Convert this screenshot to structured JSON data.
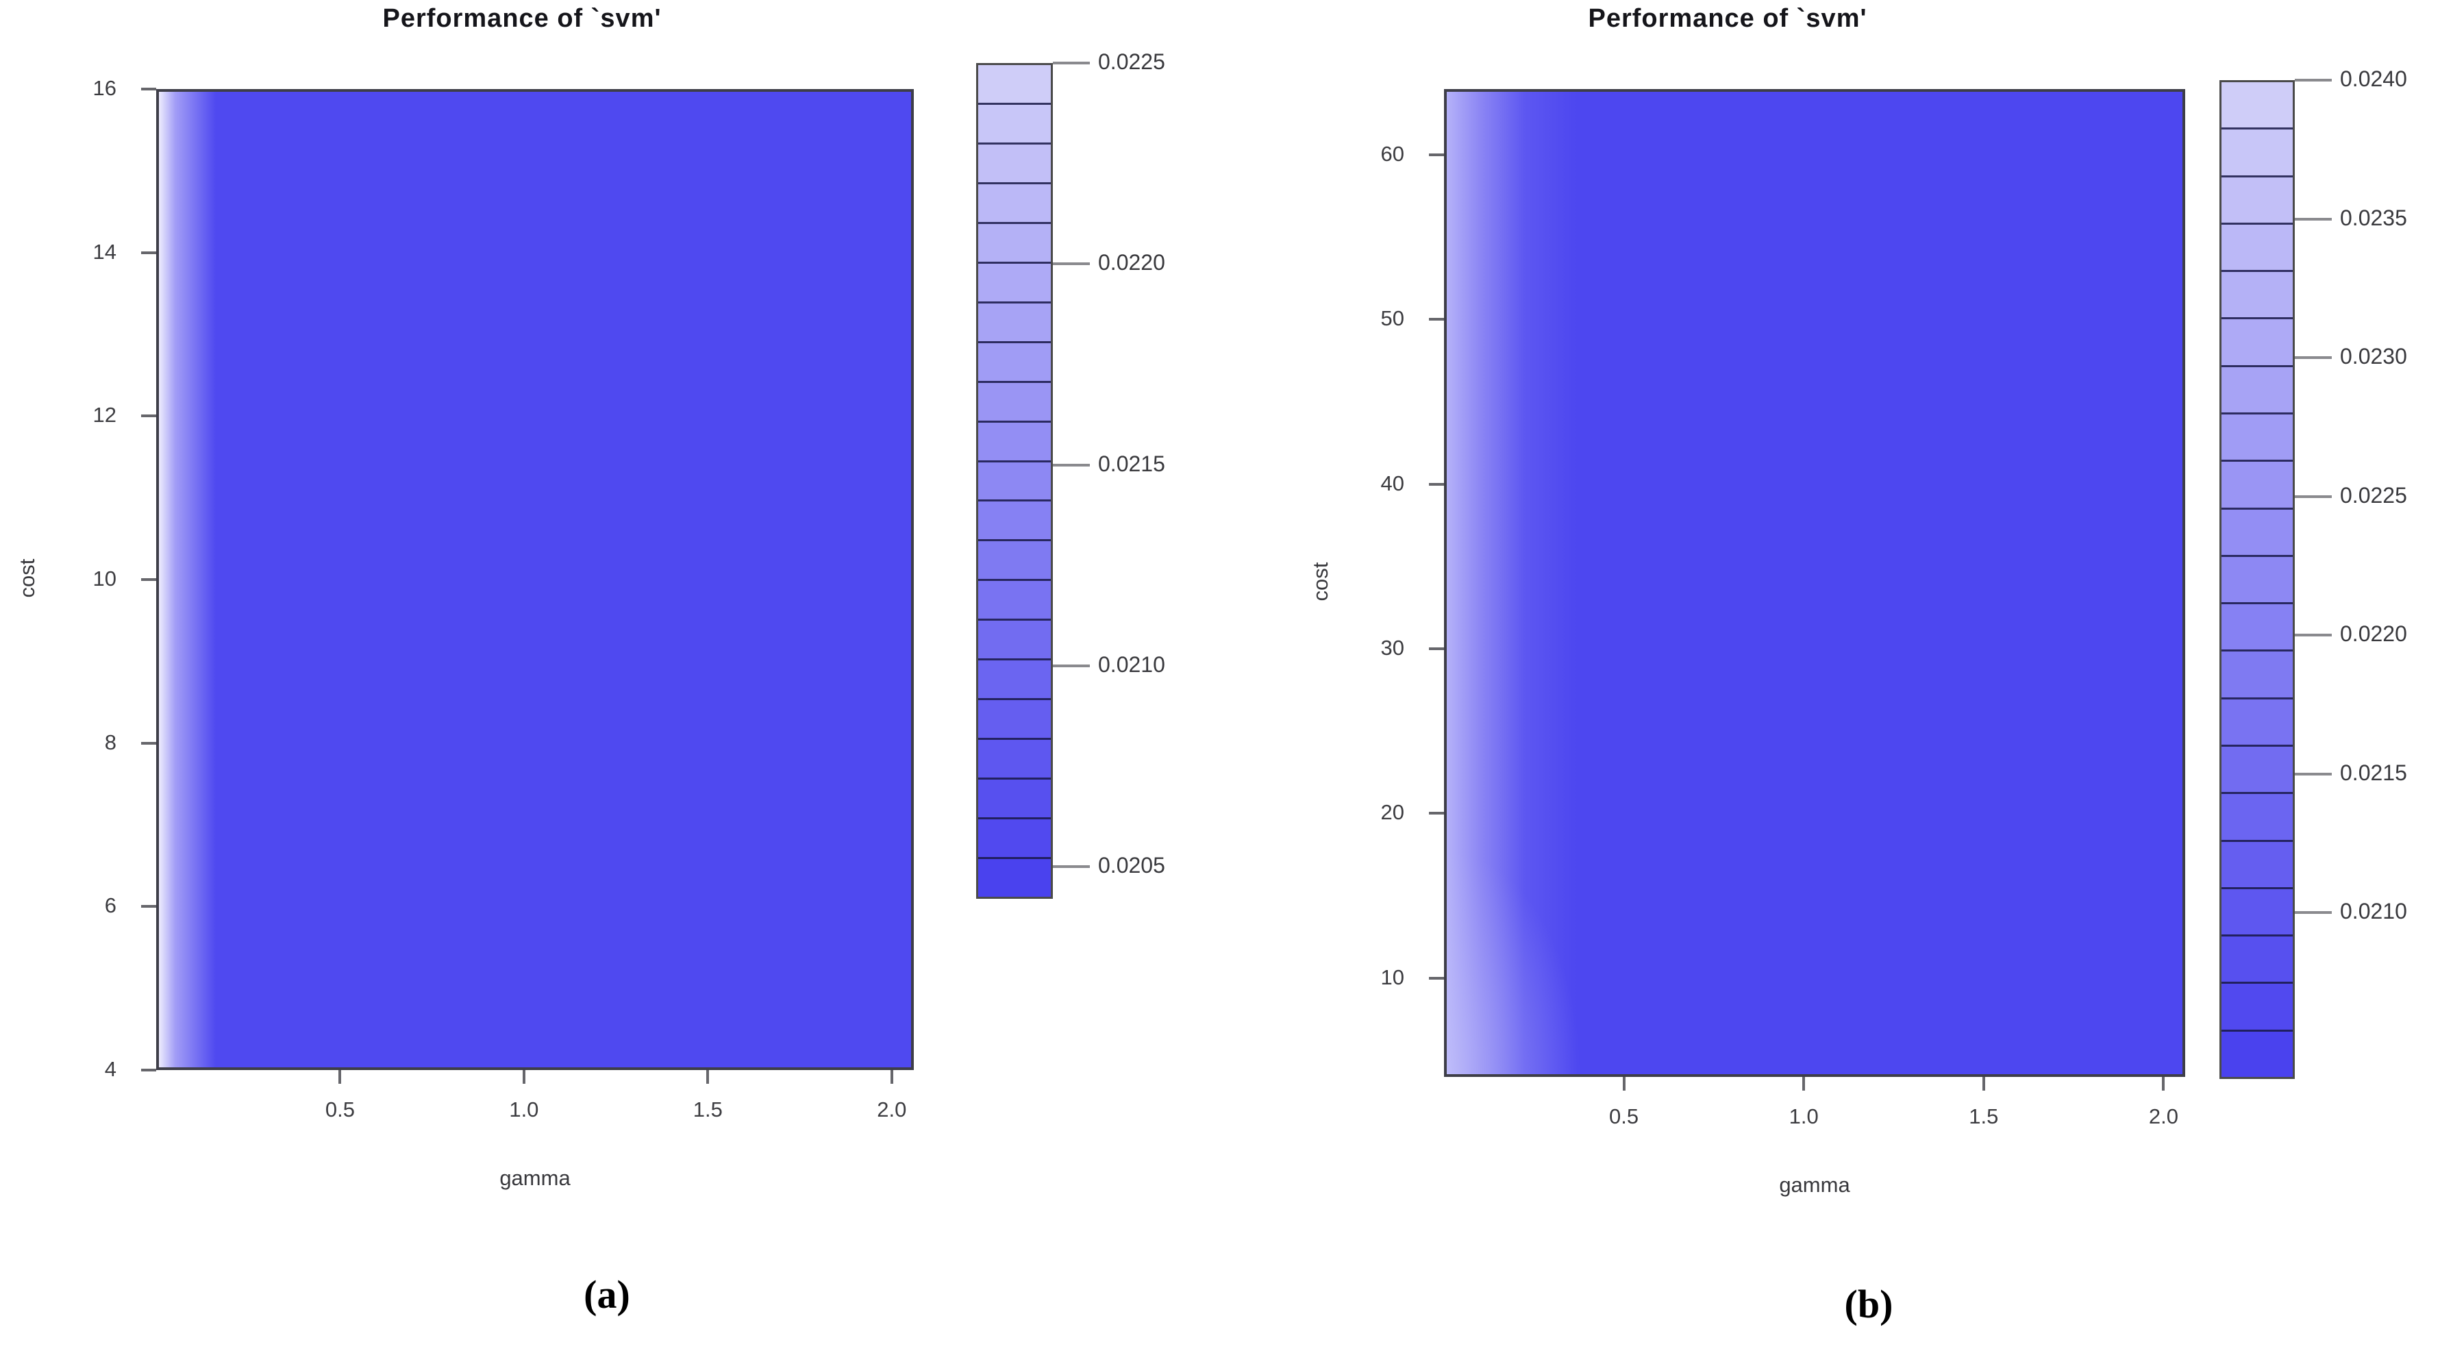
{
  "panels": [
    {
      "id": "a",
      "title": "Performance of `svm'",
      "xlabel": "gamma",
      "ylabel": "cost",
      "caption": "(a)",
      "x_range": [
        0,
        2.06
      ],
      "x_tick_values": [
        0.5,
        1.0,
        1.5,
        2.0
      ],
      "x_tick_labels": [
        "0.5",
        "1.0",
        "1.5",
        "2.0"
      ],
      "y_range": [
        4,
        16
      ],
      "y_tick_values": [
        4,
        6,
        8,
        10,
        12,
        14,
        16
      ],
      "y_tick_labels": [
        "4",
        "6",
        "8",
        "10",
        "12",
        "14",
        "16"
      ],
      "colorbar": {
        "segments": 21,
        "scale_top": 0.0225,
        "scale_bottom": 0.02042,
        "tick_values": [
          0.0225,
          0.022,
          0.0215,
          0.021,
          0.0205
        ],
        "tick_labels": [
          "0.0225",
          "0.0220",
          "0.0215",
          "0.0210",
          "0.0205"
        ],
        "color_top": "#cfcdf8",
        "color_bottom": "#4a42ee"
      },
      "surface": {
        "base": "#4f49f0",
        "edge_stops": [
          [
            "#edecfd",
            0
          ],
          [
            "#a29df6",
            0.022
          ],
          [
            "#4f49f0",
            0.075
          ]
        ]
      }
    },
    {
      "id": "b",
      "title": "Performance of `svm'",
      "xlabel": "gamma",
      "ylabel": "cost",
      "caption": "(b)",
      "x_range": [
        0,
        2.06
      ],
      "x_tick_values": [
        0.5,
        1.0,
        1.5,
        2.0
      ],
      "x_tick_labels": [
        "0.5",
        "1.0",
        "1.5",
        "2.0"
      ],
      "y_range": [
        4,
        64
      ],
      "y_tick_values": [
        10,
        20,
        30,
        40,
        50,
        60
      ],
      "y_tick_labels": [
        "10",
        "20",
        "30",
        "40",
        "50",
        "60"
      ],
      "colorbar": {
        "segments": 21,
        "scale_top": 0.024,
        "scale_bottom": 0.0204,
        "tick_values": [
          0.024,
          0.0235,
          0.023,
          0.0225,
          0.022,
          0.0215,
          0.021
        ],
        "tick_labels": [
          "0.0240",
          "0.0235",
          "0.0230",
          "0.0225",
          "0.0220",
          "0.0215",
          "0.0210"
        ],
        "color_top": "#cfcdf8",
        "color_bottom": "#4a42ee"
      },
      "surface": {
        "base": "#4d47f0",
        "edge_stops": [
          [
            "#b5b2f9",
            0
          ],
          [
            "#8c86f4",
            0.045
          ],
          [
            "#5d57f1",
            0.105
          ],
          [
            "#4d47f0",
            0.175
          ]
        ],
        "glow": "rgba(200,199,250,0.5)"
      }
    }
  ],
  "chart_data": [
    {
      "type": "heatmap",
      "title": "Performance of `svm'",
      "xlabel": "gamma",
      "ylabel": "cost",
      "x_range": [
        0,
        2.0
      ],
      "x_ticks": [
        0.5,
        1.0,
        1.5,
        2.0
      ],
      "y_range": [
        4,
        16
      ],
      "y_ticks": [
        4,
        6,
        8,
        10,
        12,
        14,
        16
      ],
      "colorbar_ticks": [
        0.0205,
        0.021,
        0.0215,
        0.022,
        0.0225
      ],
      "colorbar_range": [
        0.0204,
        0.0225
      ],
      "legend_position": "right",
      "grid": false,
      "pattern": "error is highest (~0.0225, light lavender) only at gamma near 0 for every cost; it drops to a uniform minimum (~0.0205, solid blue) for gamma greater than about 0.15; essentially no dependence on cost",
      "estimated_grid": {
        "gamma": [
          0.02,
          0.05,
          0.1,
          0.2,
          0.5,
          1.0,
          1.5,
          2.0
        ],
        "error_by_gamma": [
          0.0225,
          0.0218,
          0.021,
          0.0206,
          0.0205,
          0.0205,
          0.0205,
          0.0205
        ]
      }
    },
    {
      "type": "heatmap",
      "title": "Performance of `svm'",
      "xlabel": "gamma",
      "ylabel": "cost",
      "x_range": [
        0,
        2.0
      ],
      "x_ticks": [
        0.5,
        1.0,
        1.5,
        2.0
      ],
      "y_range": [
        4,
        64
      ],
      "y_ticks": [
        10,
        20,
        30,
        40,
        50,
        60
      ],
      "colorbar_ticks": [
        0.021,
        0.0215,
        0.022,
        0.0225,
        0.023,
        0.0235,
        0.024
      ],
      "colorbar_range": [
        0.0204,
        0.024
      ],
      "legend_position": "right",
      "grid": false,
      "pattern": "error is highest (~0.0240) at gamma near 0, fading through a wider gradient band to a uniform minimum (~0.0210) for gamma greater than about 0.3; slightly lighter wash near the bottom-left (low cost, low gamma) corner; essentially no dependence on cost elsewhere",
      "estimated_grid": {
        "gamma": [
          0.02,
          0.05,
          0.1,
          0.2,
          0.3,
          0.5,
          1.0,
          2.0
        ],
        "error_by_gamma": [
          0.0238,
          0.0231,
          0.0224,
          0.0216,
          0.0211,
          0.021,
          0.021,
          0.021
        ]
      }
    }
  ]
}
